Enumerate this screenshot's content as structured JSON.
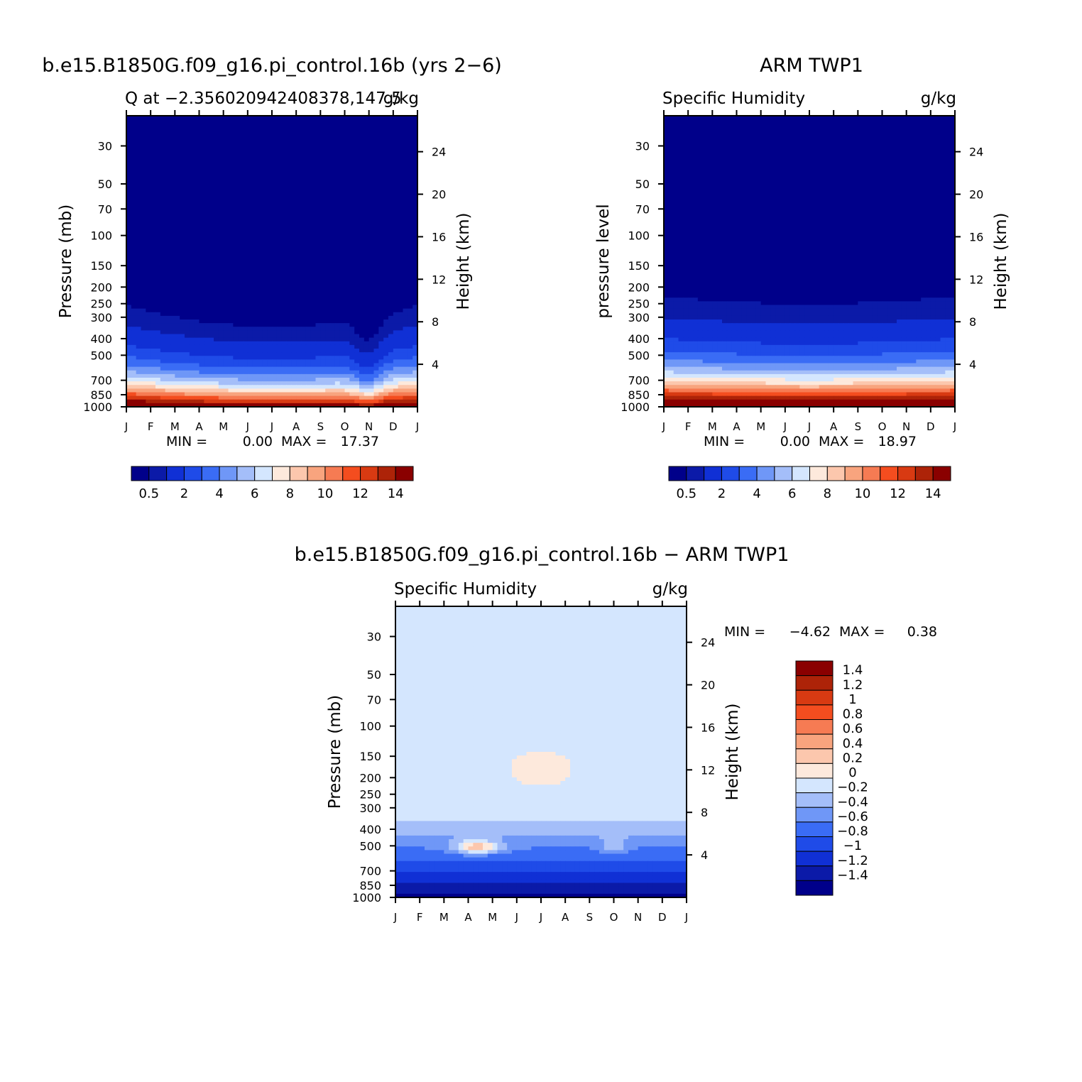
{
  "chart_data": [
    {
      "type": "heatmap",
      "title": "b.e15.B1850G.f09_g16.pi_control.16b (yrs 2−6)",
      "left_label": "Q at −2.356020942408378,147.5",
      "right_label": "g/kg",
      "ylabel": "Pressure (mb)",
      "ylabel_right": "Height (km)",
      "x_ticks": [
        "J",
        "F",
        "M",
        "A",
        "M",
        "J",
        "J",
        "A",
        "S",
        "O",
        "N",
        "D",
        "J"
      ],
      "y_ticks": [
        30,
        50,
        70,
        100,
        150,
        200,
        250,
        300,
        400,
        500,
        700,
        850,
        1000
      ],
      "y_ticks_right": [
        24,
        20,
        16,
        12,
        8,
        4
      ],
      "ylim": [
        20,
        1000
      ],
      "y_scale": "log",
      "stats": {
        "min_label": "MIN =",
        "min": "0.00",
        "max_label": "MAX =",
        "max": "17.37"
      },
      "colorbar": {
        "orientation": "horizontal",
        "levels": [
          0.5,
          1,
          2,
          3,
          4,
          5,
          6,
          7,
          8,
          9,
          10,
          11,
          12,
          13,
          14
        ],
        "tick_labels": [
          "0.5",
          "2",
          "4",
          "6",
          "8",
          "10",
          "12",
          "14"
        ],
        "colors": [
          "#00008a",
          "#0b1aa8",
          "#1030d5",
          "#1f4be8",
          "#3a6cf5",
          "#6f97f7",
          "#a4bef9",
          "#d4e6fe",
          "#fde9dc",
          "#fcc7ad",
          "#f8a47e",
          "#f67b53",
          "#f44d1f",
          "#d83a12",
          "#ad2308",
          "#8a0000"
        ]
      },
      "field": "model_q"
    },
    {
      "type": "heatmap",
      "title": "ARM TWP1",
      "left_label": "Specific Humidity",
      "right_label": "g/kg",
      "ylabel": "pressure level",
      "ylabel_right": "Height (km)",
      "x_ticks": [
        "J",
        "F",
        "M",
        "A",
        "M",
        "J",
        "J",
        "A",
        "S",
        "O",
        "N",
        "D",
        "J"
      ],
      "y_ticks": [
        30,
        50,
        70,
        100,
        150,
        200,
        250,
        300,
        400,
        500,
        700,
        850,
        1000
      ],
      "y_ticks_right": [
        24,
        20,
        16,
        12,
        8,
        4
      ],
      "ylim": [
        20,
        1000
      ],
      "y_scale": "log",
      "stats": {
        "min_label": "MIN =",
        "min": "0.00",
        "max_label": "MAX =",
        "max": "18.97"
      },
      "colorbar": {
        "orientation": "horizontal",
        "levels": [
          0.5,
          1,
          2,
          3,
          4,
          5,
          6,
          7,
          8,
          9,
          10,
          11,
          12,
          13,
          14
        ],
        "tick_labels": [
          "0.5",
          "2",
          "4",
          "6",
          "8",
          "10",
          "12",
          "14"
        ],
        "colors": [
          "#00008a",
          "#0b1aa8",
          "#1030d5",
          "#1f4be8",
          "#3a6cf5",
          "#6f97f7",
          "#a4bef9",
          "#d4e6fe",
          "#fde9dc",
          "#fcc7ad",
          "#f8a47e",
          "#f67b53",
          "#f44d1f",
          "#d83a12",
          "#ad2308",
          "#8a0000"
        ]
      },
      "field": "obs_q"
    },
    {
      "type": "heatmap",
      "title": "b.e15.B1850G.f09_g16.pi_control.16b − ARM TWP1",
      "left_label": "Specific Humidity",
      "right_label": "g/kg",
      "ylabel": "Pressure (mb)",
      "ylabel_right": "Height (km)",
      "x_ticks": [
        "J",
        "F",
        "M",
        "A",
        "M",
        "J",
        "J",
        "A",
        "S",
        "O",
        "N",
        "D",
        "J"
      ],
      "y_ticks": [
        30,
        50,
        70,
        100,
        150,
        200,
        250,
        300,
        400,
        500,
        700,
        850,
        1000
      ],
      "y_ticks_right": [
        24,
        20,
        16,
        12,
        8,
        4
      ],
      "ylim": [
        20,
        1000
      ],
      "y_scale": "log",
      "stats": {
        "min_label": "MIN =",
        "min": "−4.62",
        "max_label": "MAX =",
        "max": "0.38"
      },
      "colorbar": {
        "orientation": "vertical",
        "levels": [
          -1.4,
          -1.2,
          -1,
          -0.8,
          -0.6,
          -0.4,
          -0.2,
          0,
          0.2,
          0.4,
          0.6,
          0.8,
          1,
          1.2,
          1.4
        ],
        "tick_labels": [
          "1.4",
          "1.2",
          "1",
          "0.8",
          "0.6",
          "0.4",
          "0.2",
          "0",
          "−0.2",
          "−0.4",
          "−0.6",
          "−0.8",
          "−1",
          "−1.2",
          "−1.4"
        ],
        "colors": [
          "#00008a",
          "#0b1aa8",
          "#1030d5",
          "#1f4be8",
          "#3a6cf5",
          "#6f97f7",
          "#a4bef9",
          "#d4e6fe",
          "#fde9dc",
          "#fcc7ad",
          "#f8a47e",
          "#f67b53",
          "#f44d1f",
          "#d83a12",
          "#ad2308",
          "#8a0000"
        ]
      },
      "field": "diff_q"
    }
  ]
}
